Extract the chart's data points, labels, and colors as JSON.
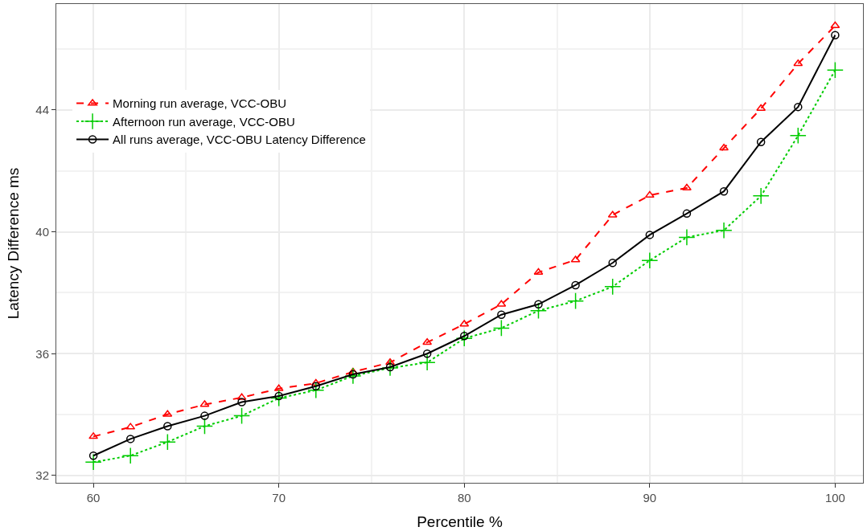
{
  "chart_data": {
    "type": "line",
    "xlabel": "Percentile %",
    "ylabel": "Latency Difference ms",
    "x": [
      60,
      62,
      64,
      66,
      68,
      70,
      72,
      74,
      76,
      78,
      80,
      82,
      84,
      86,
      88,
      90,
      92,
      94,
      96,
      98,
      100
    ],
    "series": [
      {
        "name": "Morning run average, VCC-OBU",
        "color": "#ff0000",
        "marker": "triangle",
        "line_style": "dashed",
        "values": [
          33.28,
          33.59,
          34.01,
          34.33,
          34.56,
          34.85,
          35.03,
          35.4,
          35.71,
          36.37,
          36.97,
          37.62,
          38.67,
          39.08,
          40.55,
          41.2,
          41.44,
          42.75,
          44.05,
          45.52,
          46.77
        ]
      },
      {
        "name": "Afternoon run average, VCC-OBU",
        "color": "#00cc00",
        "marker": "cross",
        "line_style": "dotted",
        "values": [
          32.44,
          32.65,
          33.1,
          33.62,
          33.96,
          34.54,
          34.8,
          35.27,
          35.53,
          35.71,
          36.5,
          36.84,
          37.41,
          37.73,
          38.2,
          39.06,
          39.82,
          40.05,
          41.18,
          43.16,
          45.31
        ]
      },
      {
        "name": "All runs average, VCC-OBU Latency Difference",
        "color": "#000000",
        "marker": "circle",
        "line_style": "solid",
        "values": [
          32.65,
          33.2,
          33.62,
          33.96,
          34.41,
          34.61,
          34.93,
          35.32,
          35.56,
          36.0,
          36.58,
          37.28,
          37.62,
          38.25,
          38.98,
          39.9,
          40.6,
          41.33,
          42.95,
          44.1,
          46.46
        ]
      }
    ],
    "xlim": [
      58,
      101.5
    ],
    "ylim": [
      31.76,
      47.48
    ],
    "xticks": [
      60,
      70,
      80,
      90,
      100
    ],
    "yticks": [
      32,
      36,
      40,
      44
    ],
    "grid": true,
    "legend": "top left"
  }
}
